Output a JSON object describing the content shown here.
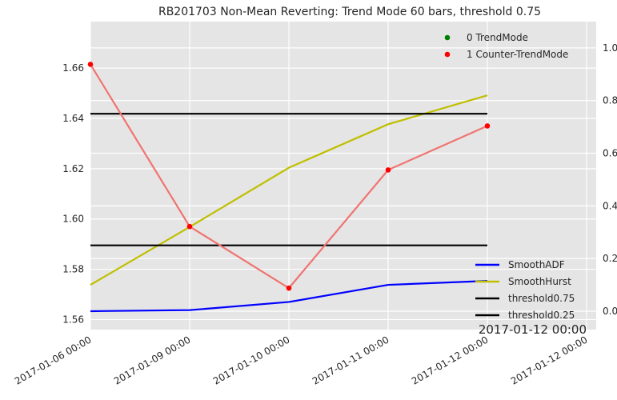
{
  "chart_data": {
    "type": "line",
    "title": "RB201703 Non-Mean Reverting: Trend Mode 60 bars, threshold 0.75",
    "x_tick_labels": [
      "2017-01-06 00:00",
      "2017-01-09 00:00",
      "2017-01-10 00:00",
      "2017-01-11 00:00",
      "2017-01-12 00:00",
      "2017-01-12 00:00"
    ],
    "corner_label": "2017-01-12 00:00",
    "y_left": {
      "ylim": [
        1.556,
        1.6785
      ],
      "ticks": [
        1.56,
        1.58,
        1.6,
        1.62,
        1.64,
        1.66
      ]
    },
    "y_right": {
      "ylim": [
        -0.07,
        1.1
      ],
      "ticks": [
        0.0,
        0.2,
        0.4,
        0.6,
        0.8,
        1.0
      ]
    },
    "grid": true,
    "background": "#e5e5e5",
    "price": {
      "x": [
        0,
        1,
        2,
        3,
        4
      ],
      "values": [
        1.6615,
        1.597,
        1.5725,
        1.6195,
        1.637
      ],
      "line_color": "#f07470",
      "markers": [
        {
          "x": 0,
          "y": 1.6615,
          "class": 1
        },
        {
          "x": 1,
          "y": 1.597,
          "class": 1
        },
        {
          "x": 2,
          "y": 1.5725,
          "class": 1
        },
        {
          "x": 3,
          "y": 1.6195,
          "class": 1
        },
        {
          "x": 4,
          "y": 1.637,
          "class": 1
        }
      ]
    },
    "series": [
      {
        "name": "SmoothADF",
        "axis": "right",
        "color": "#0000ff",
        "x": [
          0,
          1,
          2,
          3,
          4
        ],
        "values": [
          0.0,
          0.004,
          0.035,
          0.1,
          0.115
        ]
      },
      {
        "name": "SmoothHurst",
        "axis": "right",
        "color": "#bfbf00",
        "x": [
          0,
          1,
          2,
          3,
          4
        ],
        "values": [
          0.1,
          0.32,
          0.545,
          0.71,
          0.82
        ]
      },
      {
        "name": "threshold0.75",
        "axis": "right",
        "color": "#000000",
        "x": [
          0,
          4
        ],
        "values": [
          0.75,
          0.75
        ]
      },
      {
        "name": "threshold0.25",
        "axis": "right",
        "color": "#000000",
        "x": [
          0,
          4
        ],
        "values": [
          0.25,
          0.25
        ]
      }
    ],
    "scatter_legend": {
      "placement": "top-right",
      "entries": [
        {
          "label": "0 TrendMode",
          "color": "#008000"
        },
        {
          "label": "1 Counter-TrendMode",
          "color": "#ff0000"
        }
      ]
    },
    "line_legend": {
      "placement": "bottom-right"
    }
  }
}
